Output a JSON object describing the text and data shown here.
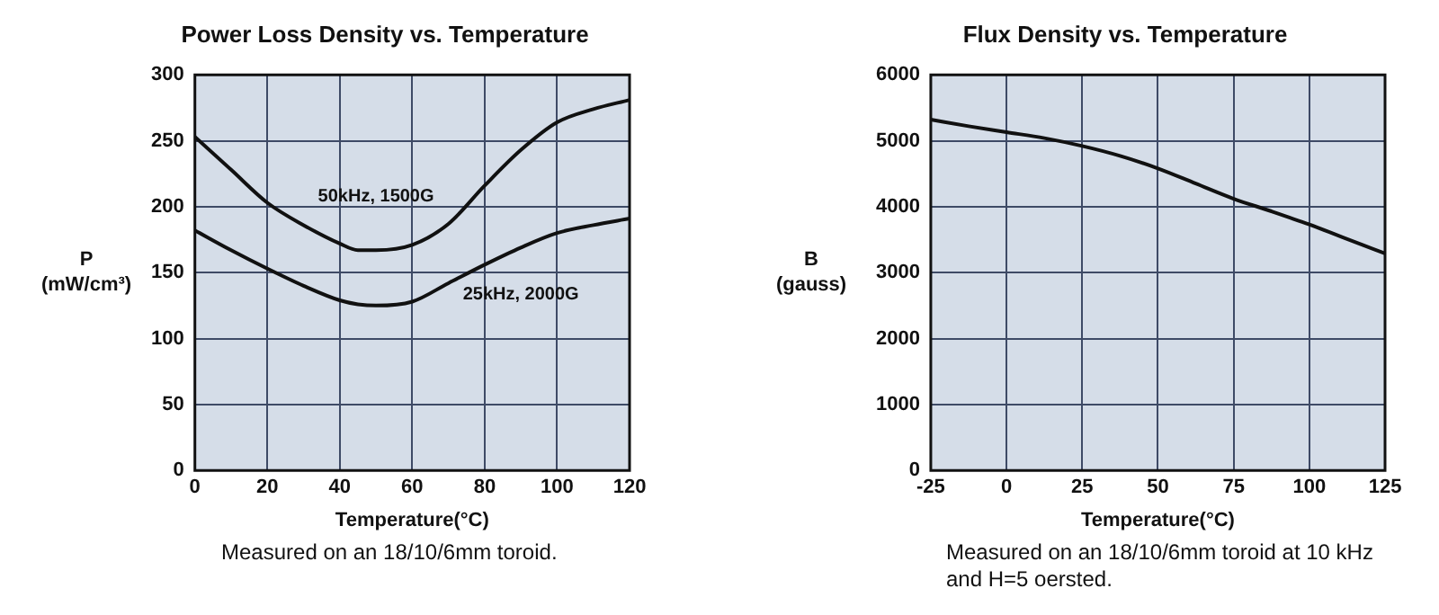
{
  "chart_data": [
    {
      "type": "line",
      "title": "Power Loss Density vs. Temperature",
      "xlabel": "Temperature(°C)",
      "ylabel": "P\n(mW/cm³)",
      "x": [
        0,
        10,
        20,
        30,
        40,
        45,
        50,
        60,
        70,
        80,
        90,
        100,
        110,
        120
      ],
      "series": [
        {
          "name": "50kHz, 1500G",
          "color": "#111111",
          "values": [
            253,
            228,
            203,
            186,
            172,
            167,
            167,
            171,
            187,
            216,
            243,
            264,
            274,
            281
          ]
        },
        {
          "name": "25kHz, 2000G",
          "color": "#111111",
          "values": [
            182,
            167,
            153,
            140,
            129,
            126,
            125,
            128,
            142,
            156,
            169,
            180,
            186,
            191
          ]
        }
      ],
      "xlim": [
        0,
        120
      ],
      "xticks": [
        0,
        20,
        40,
        60,
        80,
        100,
        120
      ],
      "ylim": [
        0,
        300
      ],
      "yticks": [
        0,
        50,
        100,
        150,
        200,
        250,
        300
      ],
      "grid": true,
      "legend": false,
      "marker": "none",
      "line_style": "solid",
      "annotations": [
        "Measured on an 18/10/6mm toroid."
      ]
    },
    {
      "type": "line",
      "title": "Flux Density vs. Temperature",
      "xlabel": "Temperature(°C)",
      "ylabel": "B\n(gauss)",
      "x": [
        -25,
        -12.5,
        0,
        12.5,
        25,
        37.5,
        50,
        62.5,
        75,
        87.5,
        100,
        112.5,
        125
      ],
      "series": [
        {
          "color": "#111111",
          "values": [
            5320,
            5220,
            5130,
            5040,
            4920,
            4770,
            4580,
            4350,
            4120,
            3930,
            3730,
            3510,
            3290
          ]
        }
      ],
      "xlim": [
        -25,
        125
      ],
      "xticks": [
        -25,
        0,
        25,
        50,
        75,
        100,
        125
      ],
      "ylim": [
        0,
        6000
      ],
      "yticks": [
        0,
        1000,
        2000,
        3000,
        4000,
        5000,
        6000
      ],
      "grid": true,
      "legend": false,
      "marker": "none",
      "line_style": "solid",
      "annotations": [
        "Measured on an 18/10/6mm toroid at 10 kHz\nand  H=5 oersted."
      ]
    }
  ]
}
